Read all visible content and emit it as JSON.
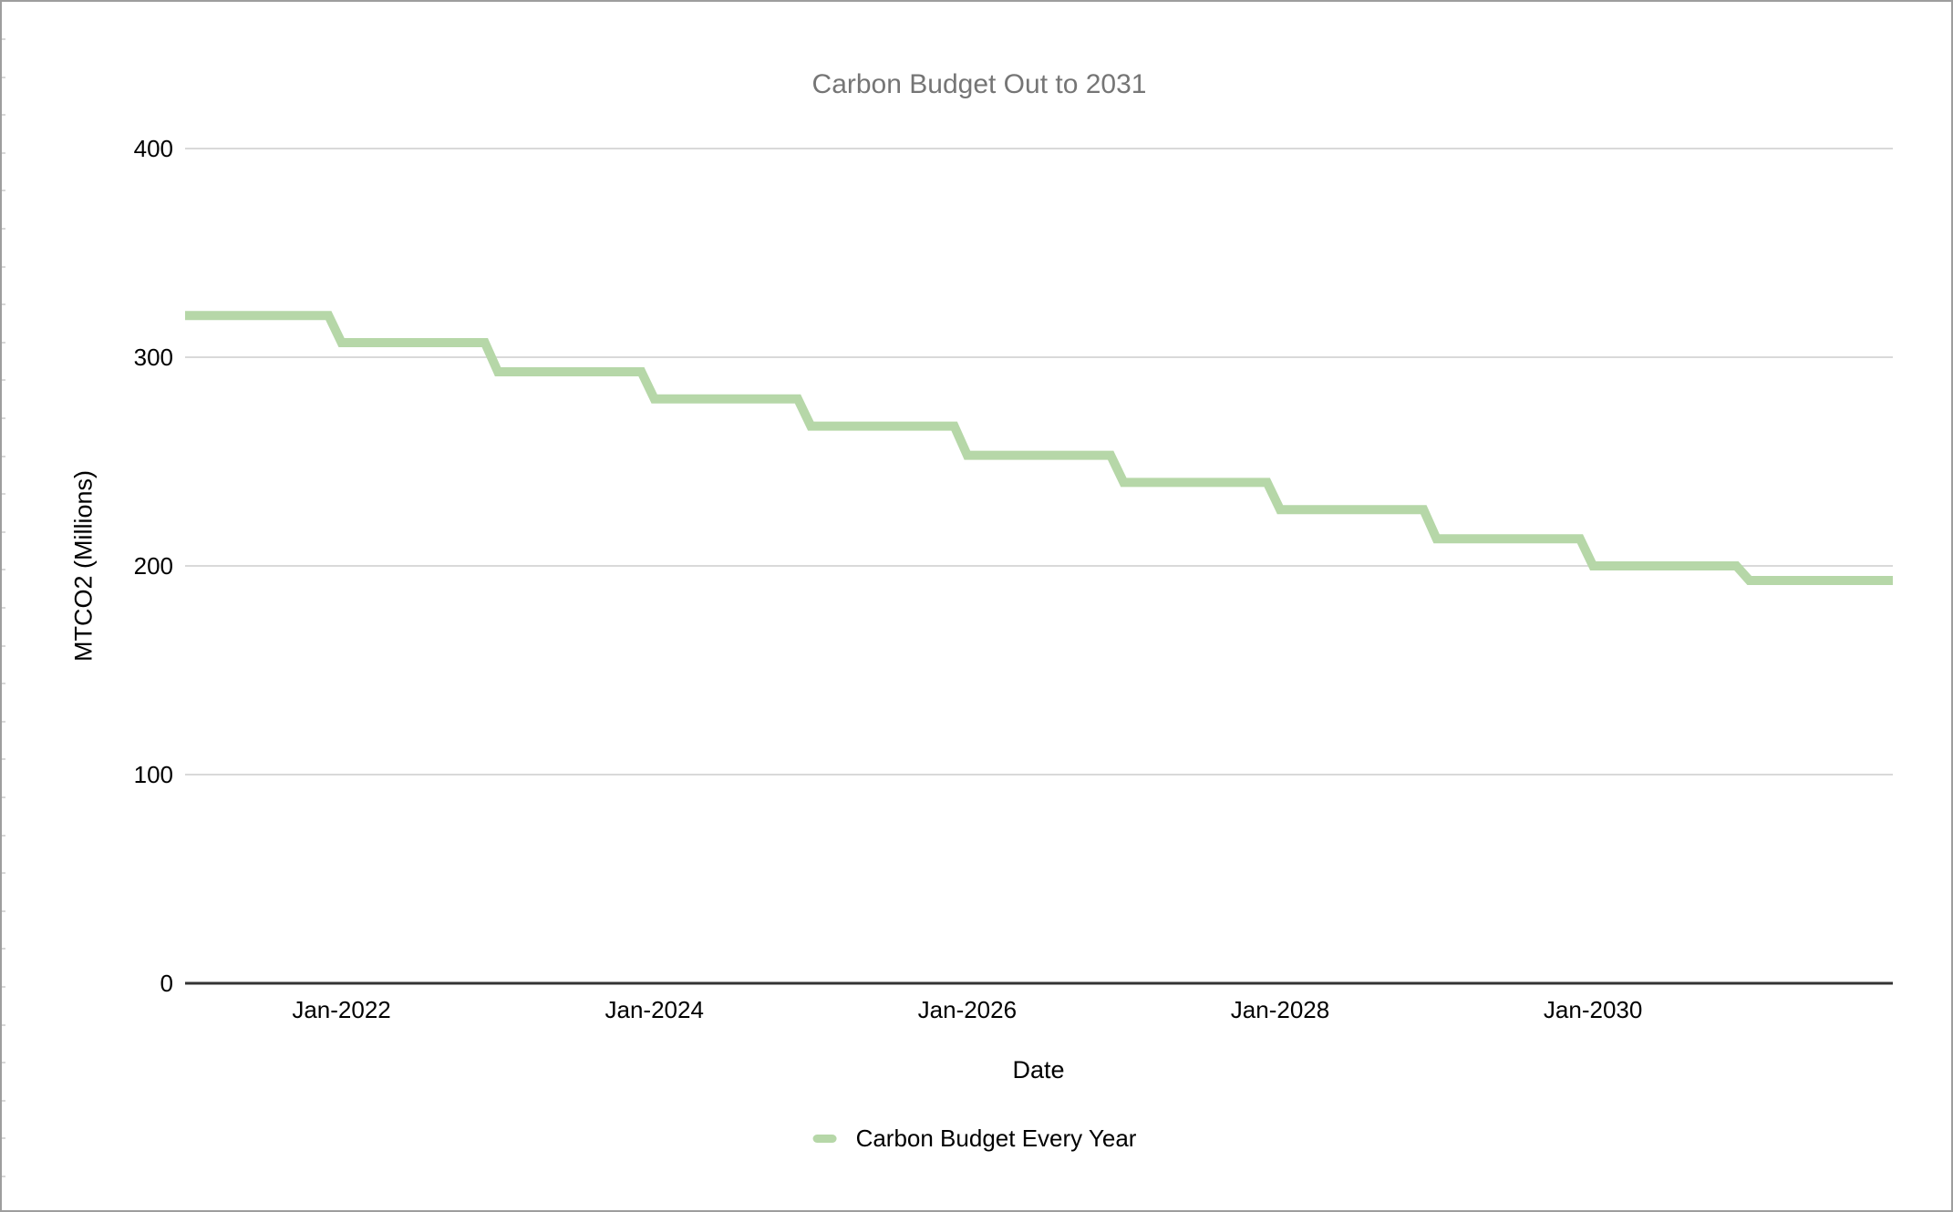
{
  "style": {
    "background": "#ffffff",
    "frame_border_color": "#9e9e9e",
    "gridline_color": "#d9d9d9",
    "axis_line_color": "#333333",
    "title_color": "#757575",
    "text_color": "#000000",
    "edge_tick_color": "#d8d8d8"
  },
  "chart_data": {
    "type": "line",
    "title": "Carbon Budget Out to 2031",
    "xlabel": "Date",
    "ylabel": "MTCO2 (Millions)",
    "line_style": "stepped: value constant within each calendar year, monthly resolution, diagonal one-month drop at each new year",
    "x_range": [
      "Jan-2021",
      "Dec-2031"
    ],
    "ylim": [
      0,
      400
    ],
    "grid": true,
    "legend_position": "bottom",
    "y_ticks": [
      {
        "value": 400,
        "label": "400"
      },
      {
        "value": 300,
        "label": "300"
      },
      {
        "value": 200,
        "label": "200"
      },
      {
        "value": 100,
        "label": "100"
      },
      {
        "value": 0,
        "label": "0"
      }
    ],
    "x_ticks": [
      {
        "label": "Jan-2022",
        "year": 2022
      },
      {
        "label": "Jan-2024",
        "year": 2024
      },
      {
        "label": "Jan-2026",
        "year": 2026
      },
      {
        "label": "Jan-2028",
        "year": 2028
      },
      {
        "label": "Jan-2030",
        "year": 2030
      }
    ],
    "series": [
      {
        "name": "Carbon Budget Every Year",
        "color": "#b6d7a8",
        "line_width": 10,
        "years": [
          2021,
          2022,
          2023,
          2024,
          2025,
          2026,
          2027,
          2028,
          2029,
          2030,
          2031
        ],
        "values": [
          320,
          307,
          293,
          280,
          267,
          253,
          240,
          227,
          213,
          200,
          193
        ]
      }
    ]
  }
}
